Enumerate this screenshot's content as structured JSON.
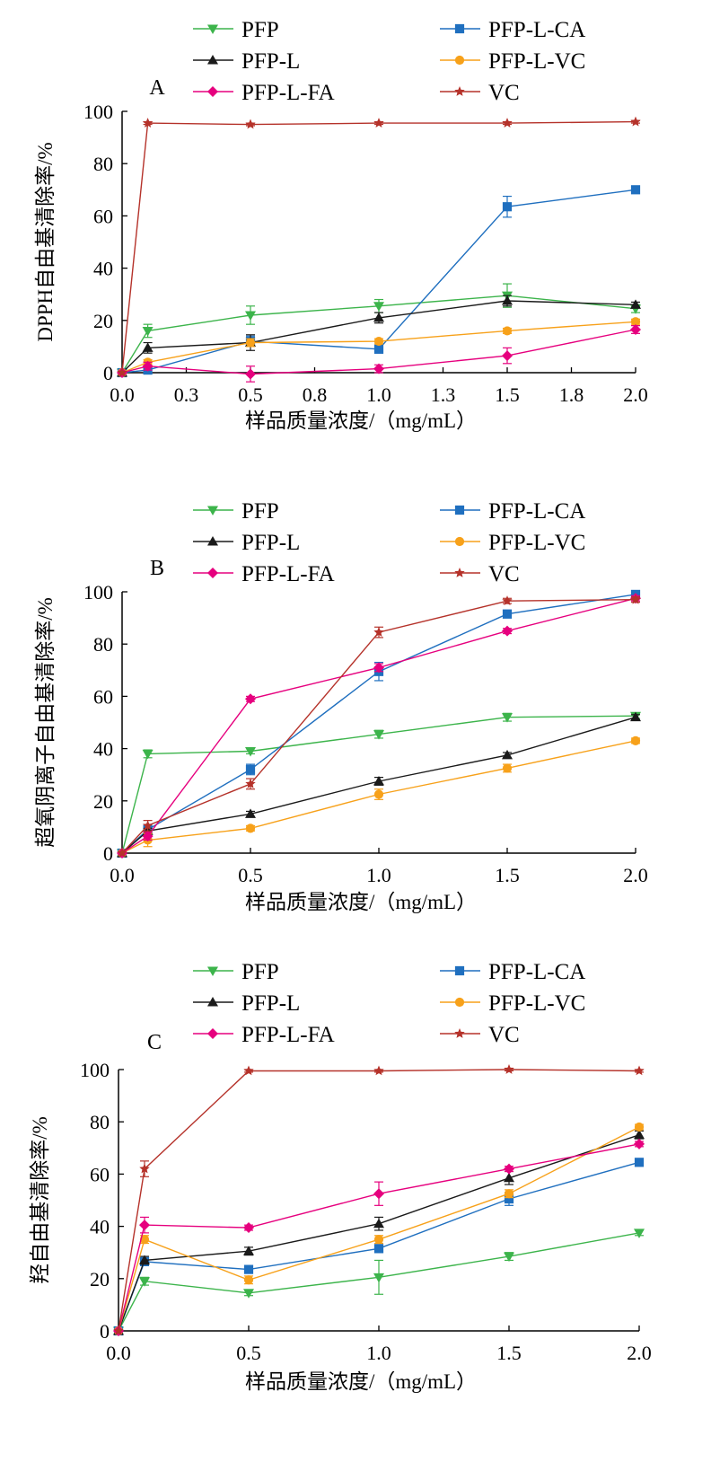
{
  "chart_data": [
    {
      "type": "line",
      "panel_label": "A",
      "xlabel": "样品质量浓度/（mg/mL）",
      "ylabel": "DPPH自由基清除率/%",
      "xlim": [
        0,
        2.0
      ],
      "ylim": [
        0,
        100
      ],
      "xticks": [
        "0.0",
        "0.3",
        "0.5",
        "0.8",
        "1.0",
        "1.3",
        "1.5",
        "1.8",
        "2.0"
      ],
      "yticks": [
        "0",
        "20",
        "40",
        "60",
        "80",
        "100"
      ],
      "x": [
        0,
        0.1,
        0.5,
        1.0,
        1.5,
        2.0
      ],
      "legend_position": "top",
      "series": [
        {
          "name": "PFP",
          "color": "#3cb44b",
          "marker": "triangle-down",
          "values": [
            0,
            16,
            22,
            25.5,
            29.5,
            24.5
          ],
          "errors": [
            0,
            2.5,
            3.5,
            2.5,
            4.5,
            1.5
          ]
        },
        {
          "name": "PFP-L-CA",
          "color": "#1f6fbf",
          "marker": "square",
          "values": [
            0,
            1,
            12,
            9,
            63.5,
            70
          ],
          "errors": [
            0,
            1,
            2,
            1.5,
            4,
            1
          ]
        },
        {
          "name": "PFP-L",
          "color": "#1a1a1a",
          "marker": "triangle-up",
          "values": [
            0,
            9.5,
            11.5,
            21,
            27.5,
            26
          ],
          "errors": [
            0,
            2,
            3,
            2,
            2,
            1
          ]
        },
        {
          "name": "PFP-L-VC",
          "color": "#f7a11a",
          "marker": "circle",
          "values": [
            0,
            4,
            11.5,
            12,
            16,
            19.5
          ],
          "errors": [
            0,
            1,
            1.5,
            1,
            1,
            1
          ]
        },
        {
          "name": "PFP-L-FA",
          "color": "#e6007e",
          "marker": "diamond",
          "values": [
            0,
            2.5,
            -0.5,
            1.5,
            6.5,
            16.5
          ],
          "errors": [
            0,
            1.5,
            3,
            1.5,
            3,
            1.5
          ]
        },
        {
          "name": "VC",
          "color": "#b5322a",
          "marker": "star",
          "values": [
            0,
            95.5,
            95,
            95.5,
            95.5,
            96
          ],
          "errors": [
            0,
            0.5,
            0.5,
            0.5,
            0.5,
            0.5
          ]
        }
      ]
    },
    {
      "type": "line",
      "panel_label": "B",
      "xlabel": "样品质量浓度/（mg/mL）",
      "ylabel": "超氧阴离子自由基清除率/%",
      "xlim": [
        0,
        2.0
      ],
      "ylim": [
        0,
        100
      ],
      "xticks": [
        "0.0",
        "0.5",
        "1.0",
        "1.5",
        "2.0"
      ],
      "yticks": [
        "0",
        "20",
        "40",
        "60",
        "80",
        "100"
      ],
      "x": [
        0,
        0.1,
        0.5,
        1.0,
        1.5,
        2.0
      ],
      "legend_position": "top",
      "series": [
        {
          "name": "PFP",
          "color": "#3cb44b",
          "marker": "triangle-down",
          "values": [
            0,
            38,
            39,
            45.5,
            52,
            52.5
          ],
          "errors": [
            0,
            1.5,
            1,
            1.5,
            1.5,
            1
          ]
        },
        {
          "name": "PFP-L-CA",
          "color": "#1f6fbf",
          "marker": "square",
          "values": [
            0,
            9,
            32,
            69.5,
            91.5,
            99
          ],
          "errors": [
            0,
            1.5,
            2,
            3.5,
            1.5,
            1
          ]
        },
        {
          "name": "PFP-L",
          "color": "#1a1a1a",
          "marker": "triangle-up",
          "values": [
            0,
            8.5,
            15,
            27.5,
            37.5,
            52
          ],
          "errors": [
            0,
            1,
            1,
            1.5,
            1,
            1
          ]
        },
        {
          "name": "PFP-L-VC",
          "color": "#f7a11a",
          "marker": "circle",
          "values": [
            0,
            5,
            9.5,
            22.5,
            32.5,
            43
          ],
          "errors": [
            0,
            2.5,
            1,
            2,
            1.5,
            1
          ]
        },
        {
          "name": "PFP-L-FA",
          "color": "#e6007e",
          "marker": "diamond",
          "values": [
            0,
            6.5,
            59,
            71,
            85,
            97.5
          ],
          "errors": [
            0,
            1.5,
            1,
            1.5,
            1,
            1
          ]
        },
        {
          "name": "VC",
          "color": "#b5322a",
          "marker": "star",
          "values": [
            0,
            10.5,
            26.5,
            84.5,
            96.5,
            97
          ],
          "errors": [
            0,
            2,
            2,
            2,
            1,
            1
          ]
        }
      ]
    },
    {
      "type": "line",
      "panel_label": "C",
      "xlabel": "样品质量浓度/（mg/mL）",
      "ylabel": "羟自由基清除率/%",
      "xlim": [
        0,
        2.0
      ],
      "ylim": [
        0,
        100
      ],
      "xticks": [
        "0.0",
        "0.5",
        "1.0",
        "1.5",
        "2.0"
      ],
      "yticks": [
        "0",
        "20",
        "40",
        "60",
        "80",
        "100"
      ],
      "x": [
        0,
        0.1,
        0.5,
        1.0,
        1.5,
        2.0
      ],
      "legend_position": "top",
      "series": [
        {
          "name": "PFP",
          "color": "#3cb44b",
          "marker": "triangle-down",
          "values": [
            0,
            19,
            14.5,
            20.5,
            28.5,
            37.5
          ],
          "errors": [
            0,
            1.5,
            1,
            6.5,
            1.5,
            1
          ]
        },
        {
          "name": "PFP-L-CA",
          "color": "#1f6fbf",
          "marker": "square",
          "values": [
            0,
            26.5,
            23.5,
            31.5,
            50.5,
            64.5
          ],
          "errors": [
            0,
            1.5,
            1,
            1.5,
            2.5,
            1
          ]
        },
        {
          "name": "PFP-L",
          "color": "#1a1a1a",
          "marker": "triangle-up",
          "values": [
            0,
            27,
            30.5,
            41,
            58.5,
            75
          ],
          "errors": [
            0,
            1.5,
            1.5,
            2.5,
            2.5,
            1.5
          ]
        },
        {
          "name": "PFP-L-VC",
          "color": "#f7a11a",
          "marker": "circle",
          "values": [
            0,
            35,
            19.5,
            35,
            52.5,
            78
          ],
          "errors": [
            0,
            1.5,
            1.5,
            1.5,
            1.5,
            1
          ]
        },
        {
          "name": "PFP-L-FA",
          "color": "#e6007e",
          "marker": "diamond",
          "values": [
            0,
            40.5,
            39.5,
            52.5,
            62,
            71.5
          ],
          "errors": [
            0,
            3,
            1,
            4.5,
            1,
            1
          ]
        },
        {
          "name": "VC",
          "color": "#b5322a",
          "marker": "star",
          "values": [
            0,
            62,
            99.5,
            99.5,
            100,
            99.5
          ],
          "errors": [
            0,
            3,
            0.5,
            0.5,
            0.5,
            0.5
          ]
        }
      ]
    }
  ]
}
